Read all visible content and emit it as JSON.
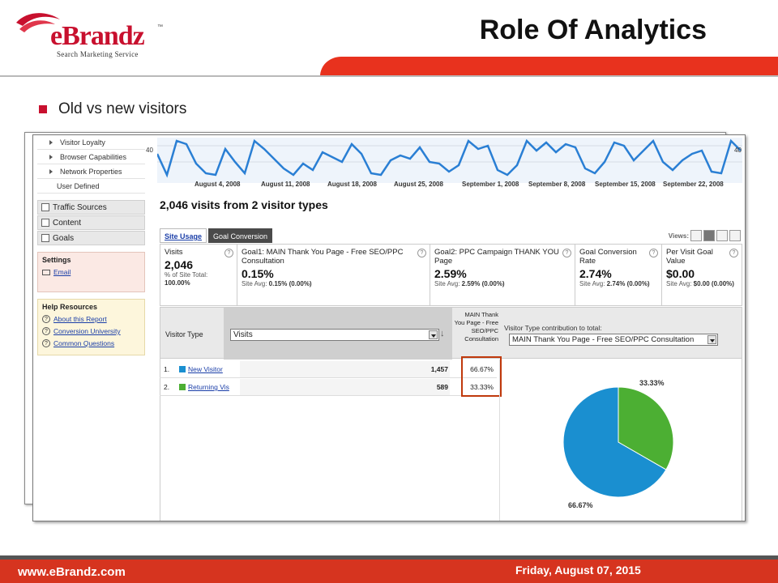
{
  "brand": {
    "name": "eBrandz",
    "tagline": "Search Marketing Service",
    "tm": "™"
  },
  "slide": {
    "title": "Role Of Analytics",
    "bullet": "Old vs new visitors",
    "footer_url": "www.eBrandz.com",
    "footer_date": "Friday, August 07, 2015"
  },
  "colors": {
    "accent": "#c8102e",
    "bar": "#e8321e",
    "new_visitor": "#1a8fd0",
    "returning_visitor": "#4caf33",
    "highlight": "#c0390c"
  },
  "sidebar": {
    "sub_items": [
      {
        "label": "Visitor Loyalty",
        "arrow": true
      },
      {
        "label": "Browser Capabilities",
        "arrow": true
      },
      {
        "label": "Network Properties",
        "arrow": true
      },
      {
        "label": "User Defined",
        "arrow": false
      }
    ],
    "main_items": [
      {
        "label": "Traffic Sources",
        "icon": "traffic-icon"
      },
      {
        "label": "Content",
        "icon": "content-icon"
      },
      {
        "label": "Goals",
        "icon": "flag-icon"
      }
    ],
    "settings": {
      "title": "Settings",
      "email": "Email"
    },
    "help": {
      "title": "Help Resources",
      "links": [
        "About this Report",
        "Conversion University",
        "Common Questions"
      ]
    }
  },
  "trend": {
    "y_max_label": "40",
    "date_labels": [
      "August 4, 2008",
      "August 11, 2008",
      "August 18, 2008",
      "August 25, 2008",
      "September 1, 2008",
      "September 8, 2008",
      "September 15, 2008",
      "September 22, 2008"
    ]
  },
  "report": {
    "summary": "2,046 visits from 2 visitor types",
    "tabs": [
      "Site Usage",
      "Goal Conversion"
    ],
    "active_tab": "Goal Conversion",
    "views_label": "Views:"
  },
  "metrics": [
    {
      "name": "Visits",
      "value": "2,046",
      "sub1": "% of Site Total:",
      "sub2": "100.00%"
    },
    {
      "name": "Goal1: MAIN Thank You Page - Free SEO/PPC Consultation",
      "value": "0.15%",
      "sub1": "Site Avg:",
      "sub2": "0.15% (0.00%)"
    },
    {
      "name": "Goal2: PPC Campaign THANK YOU Page",
      "value": "2.59%",
      "sub1": "Site Avg:",
      "sub2": "2.59% (0.00%)"
    },
    {
      "name": "Goal Conversion Rate",
      "value": "2.74%",
      "sub1": "Site Avg:",
      "sub2": "2.74% (0.00%)"
    },
    {
      "name": "Per Visit Goal Value",
      "value": "$0.00",
      "sub1": "Site Avg:",
      "sub2": "$0.00 (0.00%)"
    }
  ],
  "table": {
    "dimension_label": "Visitor Type",
    "metric_select": "Visits",
    "goal_col": "MAIN Thank You Page - Free SEO/PPC Consultation",
    "contrib_label": "Visitor Type contribution to total:",
    "contrib_select": "MAIN Thank You Page - Free SEO/PPC Consultation",
    "rows": [
      {
        "num": "1.",
        "name": "New Visitor",
        "visits": "1,457",
        "pct": "66.67%"
      },
      {
        "num": "2.",
        "name": "Returning Vis",
        "visits": "589",
        "pct": "33.33%"
      }
    ]
  },
  "pie": {
    "slices": [
      {
        "label": "66.67%",
        "value": 66.67
      },
      {
        "label": "33.33%",
        "value": 33.33
      }
    ]
  }
}
